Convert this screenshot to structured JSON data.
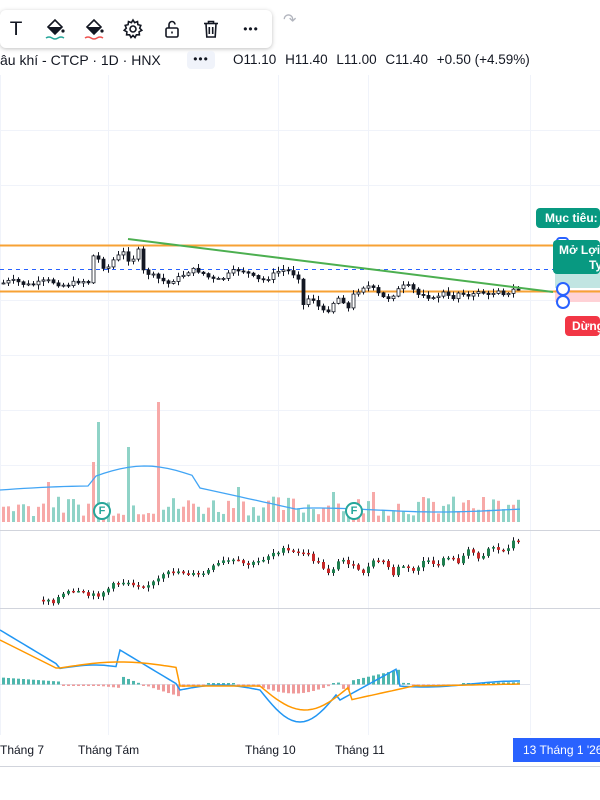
{
  "toolbar": {
    "tools": [
      {
        "name": "text-tool",
        "glyph": "T"
      },
      {
        "name": "fill-color-tool"
      },
      {
        "name": "line-color-tool"
      },
      {
        "name": "settings-tool"
      },
      {
        "name": "lock-tool"
      },
      {
        "name": "delete-tool"
      },
      {
        "name": "more-tool",
        "glyph": "•••"
      }
    ],
    "redo_glyph": "↷"
  },
  "symbol": {
    "text": "âu khí - CTCP · 1D · HNX",
    "menu_glyph": "•••"
  },
  "ohlc": {
    "open": "O11.10",
    "high": "H11.40",
    "low": "L11.00",
    "close": "C11.40",
    "change": "+0.50 (+4.59%)"
  },
  "position_tool": {
    "target_label": "Mục tiêu:",
    "open_pl_label": "Mở Lợi",
    "ratio_label": "Ty",
    "stop_label": "Dừng"
  },
  "events": {
    "marker_glyph": "F",
    "count": 2
  },
  "x_axis": {
    "labels": [
      "Tháng 7",
      "Tháng Tám",
      "Tháng 10",
      "Tháng 11"
    ],
    "current_date": "13 Tháng 1 '26"
  },
  "colors": {
    "up": "#26a69a",
    "down": "#ef5350",
    "candle": "#131722",
    "trendline": "#4caf50",
    "channel": "#f7a234",
    "dashed_level": "#2962ff",
    "volume_ma": "#42a5f5",
    "macd_line": "#2196f3",
    "signal_line": "#ff9800",
    "target_tag": "#089981",
    "stop_tag": "#f23645",
    "date_tag": "#2962ff"
  }
}
